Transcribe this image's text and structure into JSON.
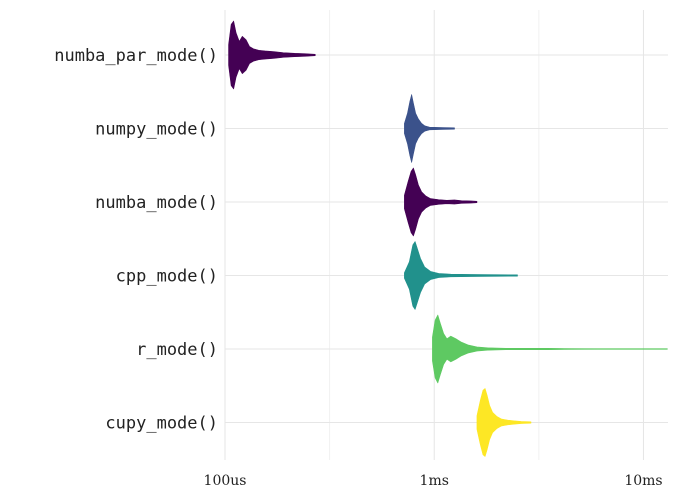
{
  "chart_data": {
    "type": "violin",
    "title": "",
    "xlabel": "",
    "ylabel": "",
    "x_scale": "log",
    "x_unit": "seconds",
    "x_range": [
      0.0001,
      0.0131
    ],
    "x_ticks": [
      {
        "value": 0.0001,
        "label": "100us"
      },
      {
        "value": 0.001,
        "label": "1ms"
      },
      {
        "value": 0.01,
        "label": "10ms"
      }
    ],
    "grid": true,
    "legend": "none",
    "series": [
      {
        "category": "numba_par_mode()",
        "color": "#440154",
        "density": [
          [
            0.000104,
            0.3
          ],
          [
            0.000107,
            0.9
          ],
          [
            0.00011,
            1.0
          ],
          [
            0.000113,
            0.65
          ],
          [
            0.000117,
            0.4
          ],
          [
            0.000121,
            0.55
          ],
          [
            0.000126,
            0.45
          ],
          [
            0.000131,
            0.25
          ],
          [
            0.000137,
            0.18
          ],
          [
            0.000145,
            0.14
          ],
          [
            0.000155,
            0.12
          ],
          [
            0.00017,
            0.1
          ],
          [
            0.00019,
            0.07
          ],
          [
            0.000215,
            0.05
          ],
          [
            0.00024,
            0.04
          ],
          [
            0.00027,
            0.02
          ]
        ]
      },
      {
        "category": "numpy_mode()",
        "color": "#3b528b",
        "density": [
          [
            0.00072,
            0.15
          ],
          [
            0.000745,
            0.45
          ],
          [
            0.000765,
            0.8
          ],
          [
            0.00078,
            1.0
          ],
          [
            0.000795,
            0.75
          ],
          [
            0.000815,
            0.45
          ],
          [
            0.00084,
            0.28
          ],
          [
            0.00087,
            0.15
          ],
          [
            0.0009,
            0.08
          ],
          [
            0.00095,
            0.04
          ],
          [
            0.00105,
            0.03
          ],
          [
            0.00125,
            0.02
          ]
        ]
      },
      {
        "category": "numba_mode()",
        "color": "#440154",
        "density": [
          [
            0.00072,
            0.2
          ],
          [
            0.00075,
            0.6
          ],
          [
            0.000775,
            0.9
          ],
          [
            0.000795,
            1.0
          ],
          [
            0.000815,
            0.8
          ],
          [
            0.00084,
            0.5
          ],
          [
            0.00087,
            0.3
          ],
          [
            0.00091,
            0.18
          ],
          [
            0.00096,
            0.1
          ],
          [
            0.00105,
            0.07
          ],
          [
            0.00115,
            0.05
          ],
          [
            0.00125,
            0.06
          ],
          [
            0.00135,
            0.04
          ],
          [
            0.0015,
            0.03
          ],
          [
            0.0016,
            0.02
          ]
        ]
      },
      {
        "category": "cpp_mode()",
        "color": "#21918c",
        "density": [
          [
            0.00072,
            0.08
          ],
          [
            0.00076,
            0.4
          ],
          [
            0.00079,
            0.9
          ],
          [
            0.00081,
            1.0
          ],
          [
            0.00083,
            0.8
          ],
          [
            0.00086,
            0.5
          ],
          [
            0.0009,
            0.25
          ],
          [
            0.00096,
            0.12
          ],
          [
            0.00105,
            0.06
          ],
          [
            0.0012,
            0.04
          ],
          [
            0.0015,
            0.03
          ],
          [
            0.002,
            0.025
          ],
          [
            0.0025,
            0.02
          ]
        ]
      },
      {
        "category": "r_mode()",
        "color": "#5ec962",
        "density": [
          [
            0.00098,
            0.35
          ],
          [
            0.00101,
            0.85
          ],
          [
            0.00104,
            1.0
          ],
          [
            0.00107,
            0.75
          ],
          [
            0.00111,
            0.45
          ],
          [
            0.00115,
            0.3
          ],
          [
            0.0012,
            0.38
          ],
          [
            0.00127,
            0.3
          ],
          [
            0.00135,
            0.2
          ],
          [
            0.00145,
            0.12
          ],
          [
            0.0016,
            0.06
          ],
          [
            0.0018,
            0.035
          ],
          [
            0.0022,
            0.02
          ],
          [
            0.0028,
            0.02
          ],
          [
            0.0035,
            0.02
          ],
          [
            0.0042,
            0.015
          ],
          [
            0.006,
            0.008
          ],
          [
            0.01,
            0.008
          ],
          [
            0.013,
            0.008
          ]
        ]
      },
      {
        "category": "cupy_mode()",
        "color": "#fde725",
        "density": [
          [
            0.0016,
            0.2
          ],
          [
            0.00166,
            0.65
          ],
          [
            0.00171,
            0.95
          ],
          [
            0.00175,
            1.0
          ],
          [
            0.00179,
            0.8
          ],
          [
            0.00184,
            0.5
          ],
          [
            0.0019,
            0.3
          ],
          [
            0.00199,
            0.18
          ],
          [
            0.0021,
            0.1
          ],
          [
            0.00225,
            0.07
          ],
          [
            0.0024,
            0.05
          ],
          [
            0.0026,
            0.03
          ],
          [
            0.0029,
            0.02
          ]
        ]
      }
    ]
  }
}
